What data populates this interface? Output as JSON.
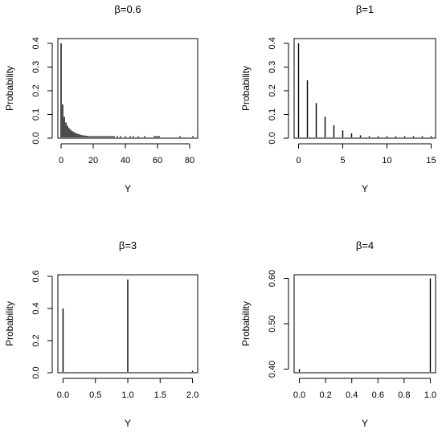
{
  "chart_data": [
    {
      "type": "bar",
      "title": "β=0.6",
      "xlabel": "Y",
      "ylabel": "Probability",
      "xlim": [
        -2,
        85
      ],
      "ylim": [
        0,
        0.42
      ],
      "xticks": [
        0,
        20,
        40,
        60,
        80
      ],
      "yticks": [
        0.0,
        0.1,
        0.2,
        0.3,
        0.4
      ],
      "xtick_labels": [
        "0",
        "20",
        "40",
        "60",
        "80"
      ],
      "ytick_labels": [
        "0.0",
        "0.1",
        "0.2",
        "0.3",
        "0.4"
      ],
      "x": [
        0,
        1,
        2,
        3,
        4,
        5,
        6,
        7,
        8,
        9,
        10,
        11,
        12,
        13,
        14,
        15,
        16,
        17,
        18,
        19,
        20,
        21,
        22,
        23,
        24,
        25,
        26,
        27,
        28,
        29,
        30,
        31,
        32,
        33,
        35,
        37,
        40,
        43,
        45,
        48,
        52,
        58,
        59,
        60,
        61,
        74,
        82
      ],
      "values": [
        0.4,
        0.142,
        0.09,
        0.066,
        0.052,
        0.042,
        0.035,
        0.03,
        0.026,
        0.022,
        0.019,
        0.017,
        0.015,
        0.013,
        0.012,
        0.011,
        0.01,
        0.009,
        0.008,
        0.007,
        0.006,
        0.006,
        0.005,
        0.005,
        0.004,
        0.004,
        0.003,
        0.003,
        0.003,
        0.002,
        0.002,
        0.002,
        0.002,
        0.001,
        0.001,
        0.001,
        0.001,
        0.001,
        0.001,
        0.001,
        0.001,
        0.001,
        0.001,
        0.001,
        0.001,
        0.001,
        0.001
      ]
    },
    {
      "type": "bar",
      "title": "β=1",
      "xlabel": "Y",
      "ylabel": "Probability",
      "xlim": [
        -0.5,
        15.5
      ],
      "ylim": [
        0,
        0.42
      ],
      "xticks": [
        0,
        5,
        10,
        15
      ],
      "yticks": [
        0.0,
        0.1,
        0.2,
        0.3,
        0.4
      ],
      "xtick_labels": [
        "0",
        "5",
        "10",
        "15"
      ],
      "ytick_labels": [
        "0.0",
        "0.1",
        "0.2",
        "0.3",
        "0.4"
      ],
      "x": [
        0,
        1,
        2,
        3,
        4,
        5,
        6,
        7,
        8,
        9,
        10,
        11,
        12,
        13,
        14,
        15
      ],
      "values": [
        0.4,
        0.244,
        0.148,
        0.09,
        0.055,
        0.033,
        0.02,
        0.012,
        0.0075,
        0.0045,
        0.0028,
        0.0017,
        0.001,
        0.0006,
        0.0004,
        0.0003
      ]
    },
    {
      "type": "bar",
      "title": "β=3",
      "xlabel": "Y",
      "ylabel": "Probability",
      "xlim": [
        -0.08,
        2.08
      ],
      "ylim": [
        0,
        0.61
      ],
      "xticks": [
        0.0,
        0.5,
        1.0,
        1.5,
        2.0
      ],
      "yticks": [
        0.0,
        0.2,
        0.4,
        0.6
      ],
      "xtick_labels": [
        "0.0",
        "0.5",
        "1.0",
        "1.5",
        "2.0"
      ],
      "ytick_labels": [
        "0.0",
        "0.2",
        "0.4",
        "0.6"
      ],
      "x": [
        0,
        1,
        2
      ],
      "values": [
        0.4,
        0.58,
        0.001
      ]
    },
    {
      "type": "bar",
      "title": "β=4",
      "xlabel": "Y",
      "ylabel": "Probability",
      "xlim": [
        -0.04,
        1.04
      ],
      "ylim": [
        0.392,
        0.608
      ],
      "xticks": [
        0.0,
        0.2,
        0.4,
        0.6,
        0.8,
        1.0
      ],
      "yticks": [
        0.4,
        0.5,
        0.6
      ],
      "xtick_labels": [
        "0.0",
        "0.2",
        "0.4",
        "0.6",
        "0.8",
        "1.0"
      ],
      "ytick_labels": [
        "0.40",
        "0.50",
        "0.60"
      ],
      "x": [
        0,
        1
      ],
      "values": [
        0.4,
        0.6
      ]
    }
  ]
}
